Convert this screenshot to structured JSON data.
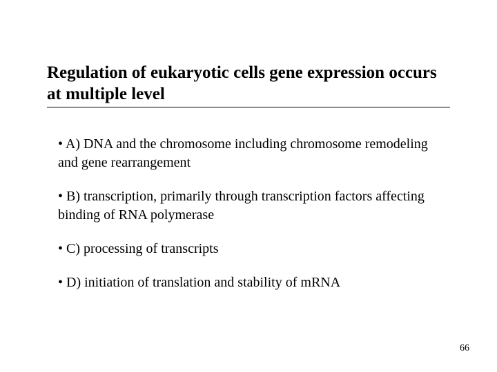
{
  "title": "Regulation of eukaryotic cells gene expression occurs at multiple level",
  "bullets": [
    "• A) DNA and the chromosome including chromosome remodeling and gene rearrangement",
    "• B) transcription, primarily through transcription factors affecting binding of RNA polymerase",
    "• C) processing of transcripts",
    "• D) initiation of translation and stability of mRNA"
  ],
  "page_number": "66",
  "colors": {
    "background": "#ffffff",
    "text": "#000000",
    "underline": "#000000"
  },
  "typography": {
    "title_fontsize": 25,
    "title_weight": "bold",
    "bullet_fontsize": 20,
    "page_number_fontsize": 14,
    "font_family": "Times New Roman"
  }
}
